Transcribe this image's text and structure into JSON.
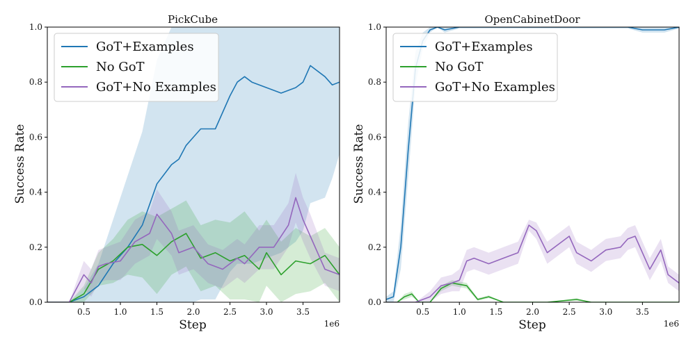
{
  "chart_data": [
    {
      "type": "line",
      "title": "PickCube",
      "xlabel": "Step",
      "ylabel": "Success Rate",
      "x_multiplier_label": "1e6",
      "xlim": [
        0,
        4000000
      ],
      "ylim": [
        0,
        1.0
      ],
      "xticks": [
        500000,
        1000000,
        1500000,
        2000000,
        2500000,
        3000000,
        3500000
      ],
      "xtick_labels": [
        "0.5",
        "1.0",
        "1.5",
        "2.0",
        "2.5",
        "3.0",
        "3.5"
      ],
      "yticks": [
        0,
        0.2,
        0.4,
        0.6,
        0.8,
        1.0
      ],
      "ytick_labels": [
        "0.0",
        "0.2",
        "0.4",
        "0.6",
        "0.8",
        "1.0"
      ],
      "legend": {
        "location": "top-left",
        "entries": [
          "GoT+Examples",
          "No GoT",
          "GoT+No Examples"
        ]
      },
      "series": [
        {
          "name": "GoT+Examples",
          "color": "#1f77b4",
          "x": [
            0,
            300000,
            500000,
            700000,
            900000,
            1100000,
            1300000,
            1500000,
            1700000,
            1800000,
            1900000,
            2000000,
            2100000,
            2300000,
            2500000,
            2600000,
            2700000,
            2800000,
            3000000,
            3200000,
            3400000,
            3500000,
            3600000,
            3800000,
            3900000,
            4000000
          ],
          "y": [
            0,
            0,
            0.02,
            0.06,
            0.14,
            0.2,
            0.28,
            0.43,
            0.5,
            0.52,
            0.57,
            0.6,
            0.63,
            0.63,
            0.75,
            0.8,
            0.82,
            0.8,
            0.78,
            0.76,
            0.78,
            0.8,
            0.86,
            0.82,
            0.79,
            0.8
          ],
          "band": [
            0,
            0,
            0.03,
            0.08,
            0.16,
            0.26,
            0.34,
            0.45,
            0.52,
            0.54,
            0.57,
            0.6,
            0.62,
            0.62,
            0.64,
            0.66,
            0.68,
            0.66,
            0.62,
            0.58,
            0.56,
            0.54,
            0.5,
            0.44,
            0.34,
            0.26
          ]
        },
        {
          "name": "No GoT",
          "color": "#2ca02c",
          "x": [
            0,
            300000,
            500000,
            700000,
            900000,
            1100000,
            1300000,
            1500000,
            1700000,
            1900000,
            2100000,
            2300000,
            2500000,
            2700000,
            2900000,
            3000000,
            3200000,
            3400000,
            3600000,
            3800000,
            4000000
          ],
          "y": [
            0,
            0,
            0.03,
            0.12,
            0.15,
            0.2,
            0.21,
            0.17,
            0.22,
            0.25,
            0.16,
            0.18,
            0.15,
            0.17,
            0.12,
            0.18,
            0.1,
            0.15,
            0.14,
            0.17,
            0.1
          ],
          "band": [
            0,
            0,
            0.03,
            0.06,
            0.08,
            0.1,
            0.12,
            0.14,
            0.12,
            0.12,
            0.12,
            0.12,
            0.14,
            0.16,
            0.14,
            0.12,
            0.12,
            0.12,
            0.1,
            0.1,
            0.1
          ]
        },
        {
          "name": "GoT+No Examples",
          "color": "#9467bd",
          "x": [
            0,
            300000,
            500000,
            600000,
            700000,
            800000,
            1000000,
            1200000,
            1400000,
            1500000,
            1700000,
            1800000,
            2000000,
            2200000,
            2400000,
            2600000,
            2700000,
            2900000,
            3100000,
            3300000,
            3400000,
            3500000,
            3600000,
            3800000,
            4000000
          ],
          "y": [
            0,
            0,
            0.1,
            0.07,
            0.13,
            0.14,
            0.15,
            0.22,
            0.25,
            0.32,
            0.25,
            0.18,
            0.2,
            0.14,
            0.12,
            0.16,
            0.14,
            0.2,
            0.2,
            0.28,
            0.38,
            0.3,
            0.24,
            0.12,
            0.1
          ],
          "band": [
            0,
            0,
            0.05,
            0.05,
            0.06,
            0.06,
            0.07,
            0.08,
            0.08,
            0.09,
            0.08,
            0.08,
            0.08,
            0.07,
            0.07,
            0.07,
            0.07,
            0.08,
            0.08,
            0.08,
            0.09,
            0.08,
            0.08,
            0.06,
            0.06
          ]
        }
      ]
    },
    {
      "type": "line",
      "title": "OpenCabinetDoor",
      "xlabel": "Step",
      "ylabel": "Success Rate",
      "x_multiplier_label": "1e6",
      "xlim": [
        0,
        4000000
      ],
      "ylim": [
        0,
        1.0
      ],
      "xticks": [
        500000,
        1000000,
        1500000,
        2000000,
        2500000,
        3000000,
        3500000
      ],
      "xtick_labels": [
        "0.5",
        "1.0",
        "1.5",
        "2.0",
        "2.5",
        "3.0",
        "3.5"
      ],
      "yticks": [
        0,
        0.2,
        0.4,
        0.6,
        0.8,
        1.0
      ],
      "ytick_labels": [
        "0.0",
        "0.2",
        "0.4",
        "0.6",
        "0.8",
        "1.0"
      ],
      "legend": {
        "location": "top-left",
        "entries": [
          "GoT+Examples",
          "No GoT",
          "GoT+No Examples"
        ]
      },
      "series": [
        {
          "name": "GoT+Examples",
          "color": "#1f77b4",
          "x": [
            0,
            100000,
            200000,
            300000,
            400000,
            500000,
            600000,
            700000,
            800000,
            1000000,
            1500000,
            2000000,
            2500000,
            3000000,
            3300000,
            3500000,
            3600000,
            3800000,
            4000000
          ],
          "y": [
            0.01,
            0.02,
            0.2,
            0.55,
            0.85,
            0.95,
            0.99,
            1.0,
            0.99,
            1.0,
            1.0,
            1.0,
            1.0,
            1.0,
            1.0,
            0.99,
            0.99,
            0.99,
            1.0
          ],
          "band": [
            0.01,
            0.02,
            0.08,
            0.1,
            0.06,
            0.03,
            0.01,
            0,
            0.01,
            0.005,
            0.005,
            0.005,
            0.005,
            0.005,
            0.005,
            0.01,
            0.01,
            0.01,
            0.005
          ]
        },
        {
          "name": "No GoT",
          "color": "#2ca02c",
          "x": [
            0,
            150000,
            250000,
            350000,
            450000,
            600000,
            750000,
            900000,
            1100000,
            1250000,
            1400000,
            1600000,
            1800000,
            2000000,
            2200000,
            2600000,
            2800000,
            3000000,
            3500000,
            4000000
          ],
          "y": [
            0,
            0,
            0.02,
            0.03,
            0.0,
            0.0,
            0.05,
            0.07,
            0.06,
            0.01,
            0.02,
            0.0,
            0.0,
            0.0,
            0.0,
            0.01,
            0.0,
            0.0,
            0.0,
            0.0
          ],
          "band": [
            0,
            0,
            0.01,
            0.01,
            0.0,
            0.0,
            0.01,
            0.01,
            0.01,
            0.005,
            0.005,
            0,
            0,
            0,
            0,
            0.005,
            0,
            0,
            0,
            0
          ]
        },
        {
          "name": "GoT+No Examples",
          "color": "#9467bd",
          "x": [
            0,
            400000,
            600000,
            750000,
            900000,
            1000000,
            1100000,
            1200000,
            1400000,
            1600000,
            1800000,
            1950000,
            2050000,
            2200000,
            2400000,
            2500000,
            2600000,
            2800000,
            3000000,
            3200000,
            3300000,
            3400000,
            3600000,
            3750000,
            3850000,
            3950000,
            4000000
          ],
          "y": [
            0,
            0,
            0.02,
            0.06,
            0.07,
            0.08,
            0.15,
            0.16,
            0.14,
            0.16,
            0.18,
            0.28,
            0.26,
            0.18,
            0.22,
            0.24,
            0.18,
            0.15,
            0.19,
            0.2,
            0.23,
            0.24,
            0.12,
            0.19,
            0.1,
            0.08,
            0.07
          ],
          "band": [
            0,
            0,
            0.02,
            0.03,
            0.03,
            0.04,
            0.04,
            0.04,
            0.04,
            0.04,
            0.04,
            0.02,
            0.03,
            0.04,
            0.04,
            0.04,
            0.04,
            0.04,
            0.04,
            0.04,
            0.04,
            0.04,
            0.04,
            0.04,
            0.03,
            0.03,
            0.03
          ]
        }
      ]
    }
  ]
}
